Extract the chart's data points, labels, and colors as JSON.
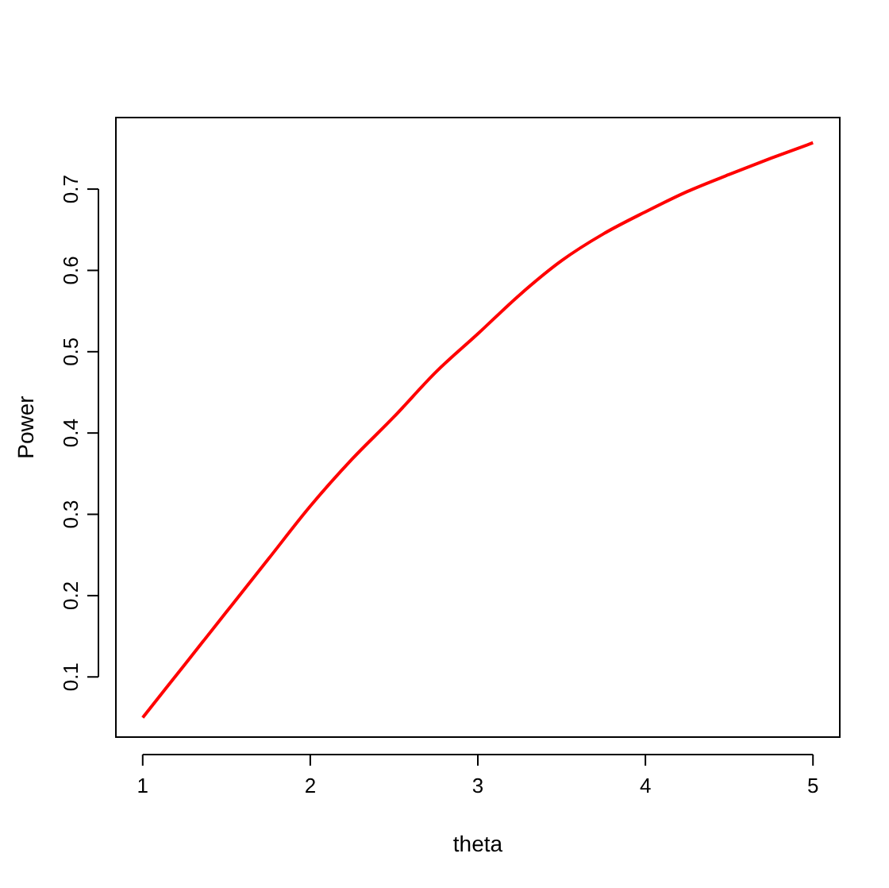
{
  "chart_data": {
    "type": "line",
    "xlabel": "theta",
    "ylabel": "Power",
    "x": [
      1,
      1.25,
      1.5,
      1.75,
      2,
      2.25,
      2.5,
      2.75,
      3,
      3.25,
      3.5,
      3.75,
      4,
      4.25,
      4.5,
      4.75,
      5
    ],
    "series": [
      {
        "color": "#ff0000",
        "values": [
          0.05,
          0.115,
          0.18,
          0.245,
          0.31,
          0.368,
          0.42,
          0.475,
          0.522,
          0.57,
          0.612,
          0.645,
          0.672,
          0.697,
          0.718,
          0.738,
          0.757
        ]
      }
    ],
    "xlim": [
      0.84,
      5.16
    ],
    "ylim": [
      0.026,
      0.788
    ],
    "xticks": [
      1,
      2,
      3,
      4,
      5
    ],
    "yticks": [
      0.1,
      0.2,
      0.3,
      0.4,
      0.5,
      0.6,
      0.7
    ],
    "grid": false,
    "marker": "none",
    "line_style": "solid"
  }
}
